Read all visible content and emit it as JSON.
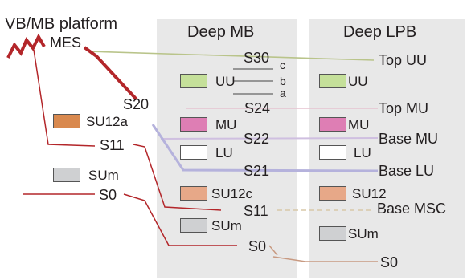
{
  "panels": {
    "platform_title": "VB/MB platform",
    "deep_mb_title": "Deep MB",
    "deep_lpb_title": "Deep LPB"
  },
  "platform": {
    "mes": "MES",
    "s20": "S20",
    "su12a": "SU12a",
    "s11": "S11",
    "sum": "SUm",
    "s0": "S0"
  },
  "deep_mb": {
    "s30": "S30",
    "uu": "UU",
    "sub_c": "c",
    "sub_b": "b",
    "sub_a": "a",
    "s24": "S24",
    "mu": "MU",
    "s22": "S22",
    "lu": "LU",
    "s21": "S21",
    "su12c": "SU12c",
    "s11": "S11",
    "sum": "SUm",
    "s0": "S0"
  },
  "deep_lpb": {
    "uu": "UU",
    "top_uu": "Top UU",
    "top_mu": "Top MU",
    "mu": "MU",
    "base_mu": "Base MU",
    "lu": "LU",
    "base_lu": "Base LU",
    "su12": "SU12",
    "base_msc": "Base MSC",
    "sum": "SUm",
    "s0": "S0"
  },
  "colors": {
    "panel_bg": "#e8e8e8",
    "uu": "#c5e09a",
    "mu": "#de7eb4",
    "lu": "#ffffff",
    "su12a": "#d9894e",
    "su12c": "#e7a888",
    "sum": "#cfd0d2",
    "red_surface": "#b3262a",
    "olive_line": "#b9c48a",
    "pink_line": "#e6c2cf",
    "purple_line": "#b5b2dc",
    "lavender_line": "#cfbfe0",
    "brown_line": "#c89a82",
    "dashed_line": "#d8c8a8"
  },
  "icons": {
    "unconformity": "zigzag-unconformity-icon"
  }
}
